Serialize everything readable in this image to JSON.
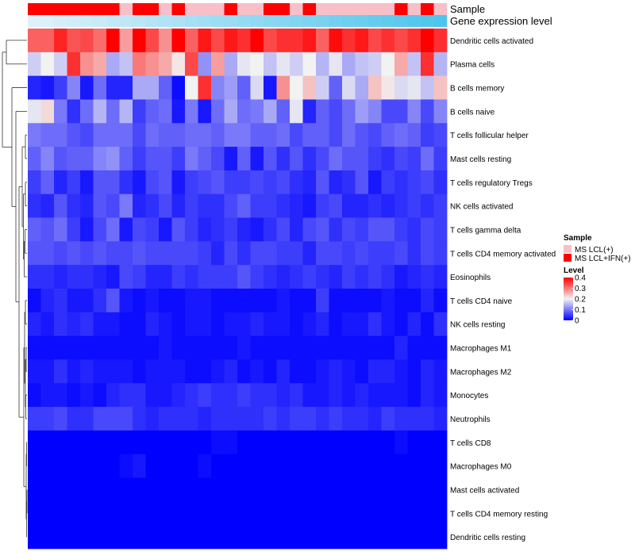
{
  "colors": {
    "low": "#0000ff",
    "mid": "#f2f2f2",
    "high": "#ff0000",
    "sample_lcl": "#f7bfc8",
    "sample_ifn": "#ff0000",
    "gene_low": "#dff1fb",
    "gene_high": "#4ec5ec",
    "tree": "#333333",
    "text": "#000000"
  },
  "chart_data": {
    "type": "heatmap",
    "title": "",
    "annotation_labels": [
      "Sample",
      "Gene expression level"
    ],
    "rows": [
      "Dendritic cells activated",
      "Plasma cells",
      "B cells memory",
      "B cells naive",
      "T cells follicular helper",
      "Mast cells resting",
      "T cells regulatory  Tregs",
      "NK cells activated",
      "T cells gamma delta",
      "T cells CD4 memory activated",
      "Eosinophils",
      "T cells CD4 naive",
      "NK cells resting",
      "Macrophages M1",
      "Macrophages M2",
      "Monocytes",
      "Neutrophils",
      "T cells CD8",
      "Macrophages M0",
      "Mast cells activated",
      "T cells CD4 memory resting",
      "Dendritic cells resting"
    ],
    "sample_groups": [
      1,
      1,
      1,
      1,
      1,
      1,
      1,
      0,
      1,
      1,
      0,
      1,
      0,
      0,
      0,
      1,
      0,
      0,
      1,
      1,
      0,
      1,
      0,
      0,
      0,
      0,
      0,
      0,
      1,
      0,
      1,
      0
    ],
    "gene_expression": [
      0,
      0.032,
      0.065,
      0.097,
      0.129,
      0.161,
      0.194,
      0.226,
      0.258,
      0.29,
      0.323,
      0.355,
      0.387,
      0.419,
      0.452,
      0.484,
      0.516,
      0.548,
      0.581,
      0.613,
      0.645,
      0.677,
      0.71,
      0.742,
      0.774,
      0.806,
      0.839,
      0.871,
      0.903,
      0.935,
      0.968,
      1
    ],
    "values": [
      [
        0.32,
        0.32,
        0.37,
        0.33,
        0.34,
        0.31,
        0.4,
        0.27,
        0.4,
        0.34,
        0.28,
        0.4,
        0.32,
        0.38,
        0.34,
        0.38,
        0.36,
        0.4,
        0.34,
        0.36,
        0.36,
        0.38,
        0.32,
        0.39,
        0.36,
        0.38,
        0.34,
        0.36,
        0.34,
        0.36,
        0.4,
        0.36
      ],
      [
        0.17,
        0.2,
        0.17,
        0.36,
        0.28,
        0.26,
        0.14,
        0.16,
        0.3,
        0.28,
        0.26,
        0.21,
        0.34,
        0.12,
        0.27,
        0.14,
        0.19,
        0.2,
        0.16,
        0.19,
        0.17,
        0.2,
        0.15,
        0.19,
        0.14,
        0.16,
        0.17,
        0.2,
        0.26,
        0.16,
        0.36,
        0.15
      ],
      [
        0.03,
        0.02,
        0.05,
        0.11,
        0.02,
        0.09,
        0.03,
        0.03,
        0.14,
        0.14,
        0.08,
        0.01,
        0.2,
        0.36,
        0.11,
        0.13,
        0.08,
        0.18,
        0.02,
        0.28,
        0.2,
        0.24,
        0.17,
        0.08,
        0.18,
        0.14,
        0.24,
        0.21,
        0.18,
        0.19,
        0.16,
        0.24
      ],
      [
        0.19,
        0.22,
        0.1,
        0.04,
        0.09,
        0.15,
        0.09,
        0.15,
        0.05,
        0.08,
        0.09,
        0.02,
        0.1,
        0.02,
        0.09,
        0.14,
        0.09,
        0.1,
        0.14,
        0.08,
        0.19,
        0.03,
        0.08,
        0.06,
        0.09,
        0.13,
        0.11,
        0.06,
        0.06,
        0.11,
        0.06,
        0.11
      ],
      [
        0.1,
        0.09,
        0.09,
        0.07,
        0.06,
        0.09,
        0.09,
        0.09,
        0.06,
        0.09,
        0.08,
        0.08,
        0.09,
        0.09,
        0.08,
        0.1,
        0.1,
        0.08,
        0.08,
        0.09,
        0.06,
        0.08,
        0.08,
        0.06,
        0.09,
        0.07,
        0.06,
        0.08,
        0.09,
        0.08,
        0.05,
        0.06
      ],
      [
        0.08,
        0.11,
        0.07,
        0.08,
        0.08,
        0.11,
        0.12,
        0.08,
        0.05,
        0.07,
        0.07,
        0.05,
        0.1,
        0.08,
        0.06,
        0.02,
        0.08,
        0.02,
        0.07,
        0.04,
        0.07,
        0.04,
        0.06,
        0.09,
        0.07,
        0.07,
        0.05,
        0.04,
        0.06,
        0.05,
        0.09,
        0.05
      ],
      [
        0.05,
        0.08,
        0.03,
        0.05,
        0.02,
        0.07,
        0.07,
        0.04,
        0.02,
        0.06,
        0.07,
        0.02,
        0.05,
        0.06,
        0.07,
        0.05,
        0.05,
        0.06,
        0.05,
        0.06,
        0.04,
        0.03,
        0.07,
        0.03,
        0.04,
        0.07,
        0.02,
        0.05,
        0.04,
        0.05,
        0.06,
        0.04
      ],
      [
        0.04,
        0.03,
        0.07,
        0.04,
        0.03,
        0.07,
        0.06,
        0.1,
        0.03,
        0.04,
        0.06,
        0.03,
        0.05,
        0.04,
        0.04,
        0.06,
        0.08,
        0.05,
        0.05,
        0.04,
        0.03,
        0.02,
        0.05,
        0.06,
        0.03,
        0.03,
        0.04,
        0.03,
        0.04,
        0.05,
        0.04,
        0.05
      ],
      [
        0.08,
        0.07,
        0.09,
        0.05,
        0.02,
        0.06,
        0.09,
        0.02,
        0.06,
        0.05,
        0.02,
        0.07,
        0.05,
        0.03,
        0.04,
        0.05,
        0.03,
        0.02,
        0.04,
        0.06,
        0.03,
        0.06,
        0.07,
        0.04,
        0.06,
        0.05,
        0.07,
        0.07,
        0.05,
        0.04,
        0.06,
        0.05
      ],
      [
        0.07,
        0.07,
        0.06,
        0.07,
        0.06,
        0.07,
        0.06,
        0.06,
        0.07,
        0.06,
        0.06,
        0.06,
        0.06,
        0.05,
        0.03,
        0.06,
        0.04,
        0.06,
        0.06,
        0.05,
        0.05,
        0.03,
        0.06,
        0.06,
        0.05,
        0.06,
        0.05,
        0.05,
        0.06,
        0.04,
        0.06,
        0.05
      ],
      [
        0.04,
        0.04,
        0.03,
        0.04,
        0.04,
        0.03,
        0.02,
        0.06,
        0.05,
        0.03,
        0.03,
        0.05,
        0.04,
        0.05,
        0.05,
        0.05,
        0.07,
        0.05,
        0.04,
        0.03,
        0.04,
        0.05,
        0.04,
        0.03,
        0.05,
        0.04,
        0.05,
        0.04,
        0.02,
        0.03,
        0.04,
        0.03
      ],
      [
        0.01,
        0.03,
        0.04,
        0.02,
        0.02,
        0.04,
        0.07,
        0.02,
        0.01,
        0.02,
        0.01,
        0.01,
        0.02,
        0.02,
        0.01,
        0.01,
        0.01,
        0.01,
        0.01,
        0.02,
        0.01,
        0.01,
        0.05,
        0.01,
        0.01,
        0.01,
        0.01,
        0.02,
        0.01,
        0.01,
        0.03,
        0.01
      ],
      [
        0.03,
        0.02,
        0.04,
        0.03,
        0.04,
        0.02,
        0.02,
        0.01,
        0.01,
        0.03,
        0.02,
        0.01,
        0.02,
        0.02,
        0.01,
        0.02,
        0.02,
        0.03,
        0.02,
        0.02,
        0.01,
        0.02,
        0.03,
        0.01,
        0.02,
        0.02,
        0.04,
        0.02,
        0.01,
        0.03,
        0.01,
        0.04
      ],
      [
        0.01,
        0.01,
        0.01,
        0.01,
        0.01,
        0.01,
        0.01,
        0.01,
        0.01,
        0.01,
        0.02,
        0.01,
        0.01,
        0.01,
        0.01,
        0.01,
        0.02,
        0.01,
        0.01,
        0.01,
        0.01,
        0.01,
        0.01,
        0.01,
        0.01,
        0.01,
        0.01,
        0.01,
        0.03,
        0.01,
        0.01,
        0.01
      ],
      [
        0.02,
        0.02,
        0.04,
        0.02,
        0.03,
        0.02,
        0.02,
        0.02,
        0.01,
        0.02,
        0.02,
        0.02,
        0.01,
        0.01,
        0.02,
        0.03,
        0.01,
        0.02,
        0.01,
        0.03,
        0.01,
        0.01,
        0.02,
        0.03,
        0.02,
        0.01,
        0.03,
        0.03,
        0.02,
        0.01,
        0.03,
        0.02
      ],
      [
        0.01,
        0.02,
        0.02,
        0.01,
        0.02,
        0.01,
        0.03,
        0.04,
        0.04,
        0.02,
        0.02,
        0.03,
        0.04,
        0.05,
        0.04,
        0.04,
        0.05,
        0.04,
        0.04,
        0.03,
        0.04,
        0.02,
        0.02,
        0.03,
        0.02,
        0.03,
        0.02,
        0.02,
        0.02,
        0.01,
        0.03,
        0.02
      ],
      [
        0.05,
        0.05,
        0.06,
        0.04,
        0.04,
        0.06,
        0.06,
        0.06,
        0.04,
        0.03,
        0.04,
        0.04,
        0.04,
        0.03,
        0.04,
        0.04,
        0.04,
        0.04,
        0.05,
        0.04,
        0.05,
        0.05,
        0.04,
        0.05,
        0.04,
        0.04,
        0.03,
        0.05,
        0.04,
        0.04,
        0.04,
        0.03
      ],
      [
        0.0,
        0.0,
        0.0,
        0.0,
        0.0,
        0.0,
        0.0,
        0.0,
        0.0,
        0.0,
        0.0,
        0.0,
        0.0,
        0.0,
        0.01,
        0.01,
        0.0,
        0.0,
        0.0,
        0.0,
        0.0,
        0.0,
        0.0,
        0.0,
        0.0,
        0.0,
        0.0,
        0.0,
        0.01,
        0.0,
        0.0,
        0.0
      ],
      [
        0.0,
        0.0,
        0.0,
        0.0,
        0.0,
        0.0,
        0.0,
        0.01,
        0.02,
        0.0,
        0.0,
        0.0,
        0.0,
        0.01,
        0.0,
        0.0,
        0.0,
        0.0,
        0.0,
        0.0,
        0.0,
        0.0,
        0.0,
        0.0,
        0.0,
        0.0,
        0.0,
        0.0,
        0.0,
        0.0,
        0.0,
        0.0
      ],
      [
        0.0,
        0.0,
        0.0,
        0.0,
        0.0,
        0.0,
        0.0,
        0.0,
        0.0,
        0.0,
        0.0,
        0.0,
        0.0,
        0.0,
        0.0,
        0.0,
        0.0,
        0.0,
        0.0,
        0.0,
        0.0,
        0.0,
        0.0,
        0.0,
        0.0,
        0.0,
        0.0,
        0.0,
        0.0,
        0.0,
        0.0,
        0.0
      ],
      [
        0.0,
        0.0,
        0.0,
        0.0,
        0.0,
        0.0,
        0.0,
        0.0,
        0.0,
        0.0,
        0.0,
        0.0,
        0.0,
        0.0,
        0.0,
        0.0,
        0.0,
        0.0,
        0.0,
        0.0,
        0.0,
        0.0,
        0.0,
        0.0,
        0.0,
        0.0,
        0.0,
        0.0,
        0.0,
        0.0,
        0.0,
        0.0
      ],
      [
        0.0,
        0.0,
        0.0,
        0.0,
        0.0,
        0.0,
        0.0,
        0.0,
        0.0,
        0.0,
        0.0,
        0.0,
        0.0,
        0.0,
        0.0,
        0.0,
        0.0,
        0.0,
        0.0,
        0.0,
        0.0,
        0.0,
        0.0,
        0.0,
        0.0,
        0.0,
        0.0,
        0.0,
        0.0,
        0.0,
        0.0,
        0.0
      ]
    ],
    "color_range": [
      0,
      0.4
    ],
    "legend": {
      "sample_title": "Sample",
      "sample_entries": [
        "MS LCL(+)",
        "MS LCL+IFN(+)"
      ],
      "level_title": "Level",
      "level_ticks": [
        {
          "value": 0.4,
          "label": "0.4"
        },
        {
          "value": 0.3,
          "label": "0.3"
        },
        {
          "value": 0.2,
          "label": "0.2"
        },
        {
          "value": 0.1,
          "label": "0.1"
        },
        {
          "value": 0,
          "label": "0"
        }
      ],
      "placement": "right"
    }
  }
}
